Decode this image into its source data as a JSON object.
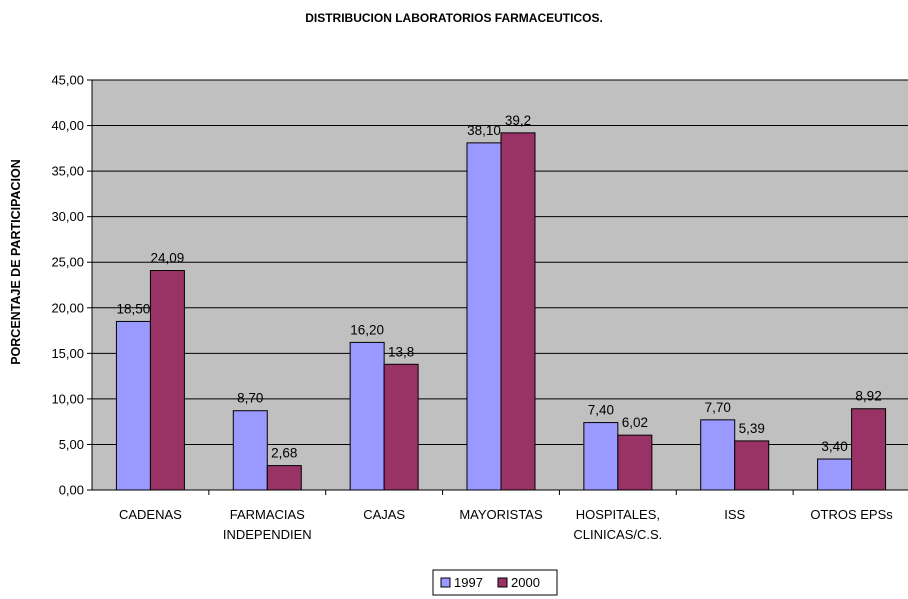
{
  "chart_data": {
    "type": "bar",
    "title": "DISTRIBUCION LABORATORIOS FARMACEUTICOS.",
    "xlabel": "",
    "ylabel": "PORCENTAJE DE PARTICIPACION",
    "ylim": [
      0,
      45
    ],
    "yticks": [
      "0,00",
      "5,00",
      "10,00",
      "15,00",
      "20,00",
      "25,00",
      "30,00",
      "35,00",
      "40,00",
      "45,00"
    ],
    "categories": [
      [
        "CADENAS"
      ],
      [
        "FARMACIAS",
        "INDEPENDIEN"
      ],
      [
        "CAJAS"
      ],
      [
        "MAYORISTAS"
      ],
      [
        "HOSPITALES,",
        "CLINICAS/C.S."
      ],
      [
        "ISS"
      ],
      [
        "OTROS EPSs"
      ]
    ],
    "series": [
      {
        "name": "1997",
        "color": "#9999FF",
        "values": [
          18.5,
          8.7,
          16.2,
          38.1,
          7.4,
          7.7,
          3.4
        ],
        "labels": [
          "18,50",
          "8,70",
          "16,20",
          "38,10",
          "7,40",
          "7,70",
          "3,40"
        ]
      },
      {
        "name": "2000",
        "color": "#993366",
        "values": [
          24.09,
          2.68,
          13.8,
          39.2,
          6.02,
          5.39,
          8.92
        ],
        "labels": [
          "24,09",
          "2,68",
          "13,8",
          "39,2",
          "6,02",
          "5,39",
          "8,92"
        ]
      }
    ],
    "grid": true,
    "plot_background": "#C0C0C0",
    "legend": "bottom-center"
  }
}
